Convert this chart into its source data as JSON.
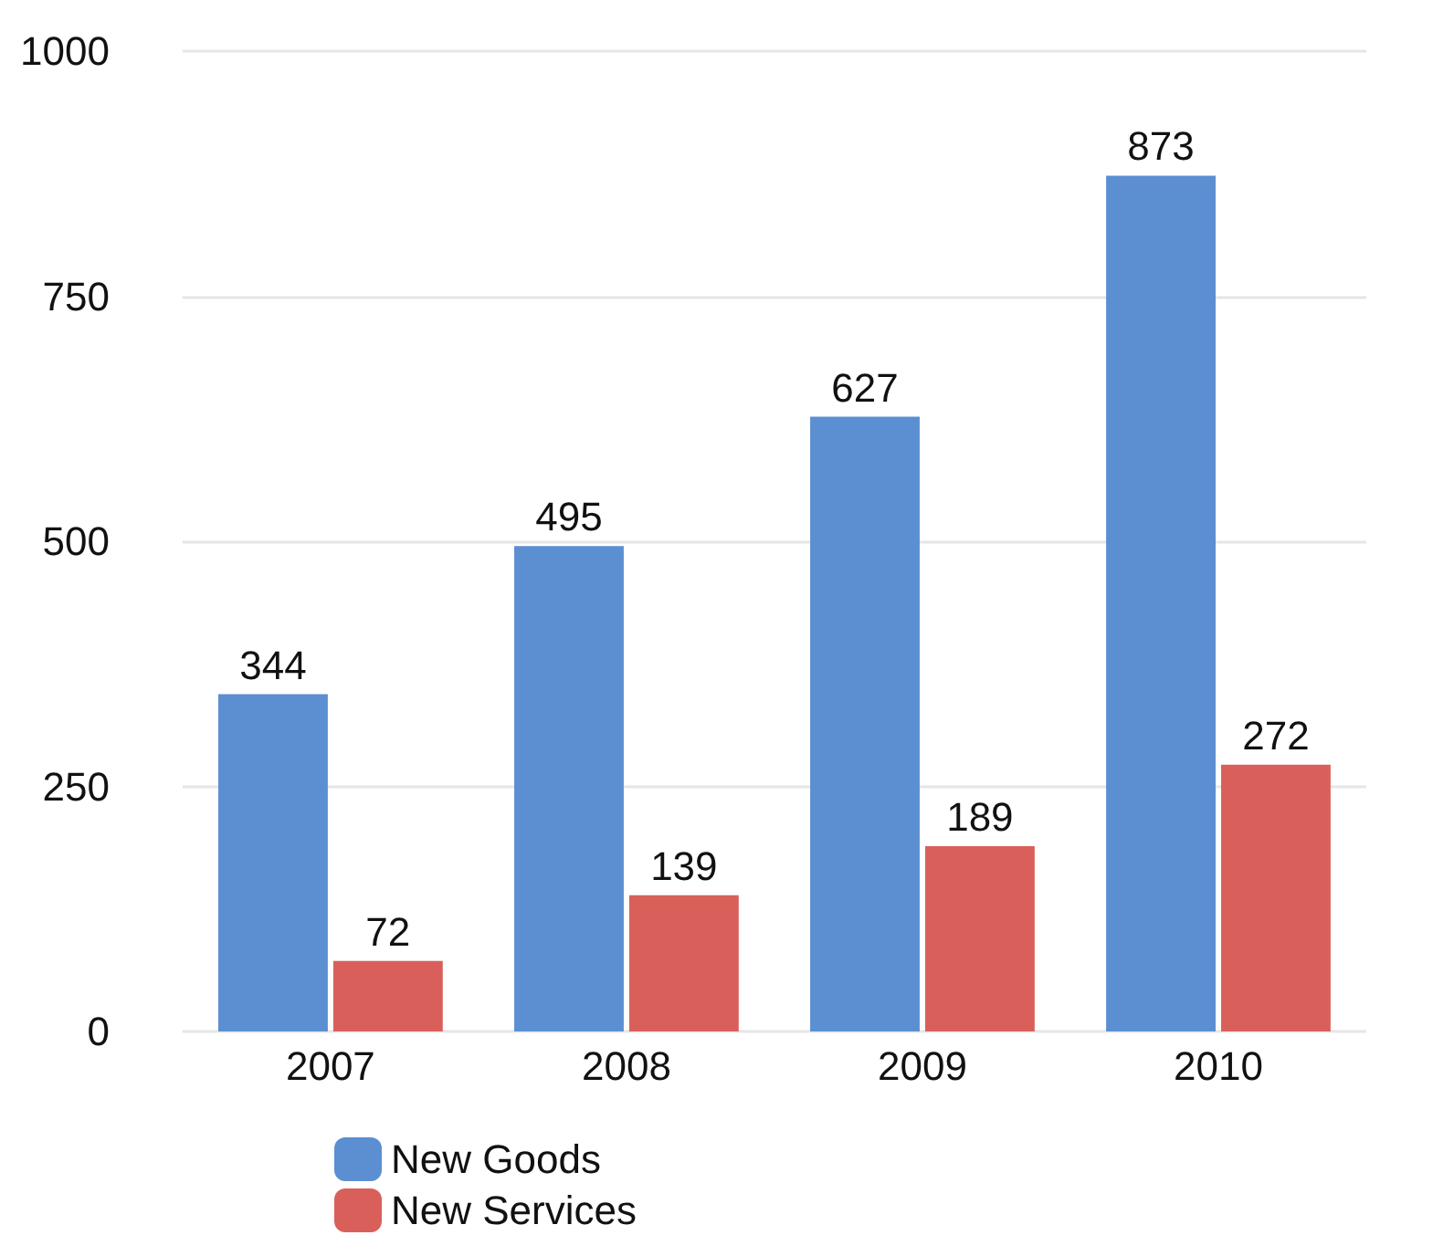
{
  "chart_data": {
    "type": "bar",
    "categories": [
      "2007",
      "2008",
      "2009",
      "2010"
    ],
    "series": [
      {
        "name": "New Goods",
        "color": "#5b8fd2",
        "values": [
          344,
          495,
          627,
          873
        ]
      },
      {
        "name": "New Services",
        "color": "#d9605a",
        "values": [
          72,
          139,
          189,
          272
        ]
      }
    ],
    "ylim": [
      0,
      1000
    ],
    "yticks": [
      0,
      250,
      500,
      750,
      1000
    ],
    "grid": "y",
    "legend": "bottom",
    "data_labels": true
  }
}
